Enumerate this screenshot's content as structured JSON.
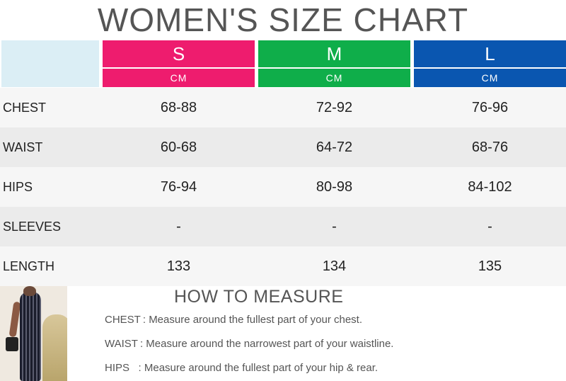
{
  "title": "WOMEN'S SIZE CHART",
  "sizes": [
    {
      "label": "S",
      "unit": "CM",
      "color": "#ee1c6e"
    },
    {
      "label": "M",
      "unit": "CM",
      "color": "#0fae4a"
    },
    {
      "label": "L",
      "unit": "CM",
      "color": "#0a56b0"
    }
  ],
  "rows": [
    {
      "label": "CHEST",
      "values": [
        "68-88",
        "72-92",
        "76-96"
      ]
    },
    {
      "label": "WAIST",
      "values": [
        "60-68",
        "64-72",
        "68-76"
      ]
    },
    {
      "label": "HIPS",
      "values": [
        "76-94",
        "80-98",
        "84-102"
      ]
    },
    {
      "label": "SLEEVES",
      "values": [
        "-",
        "-",
        "-"
      ]
    },
    {
      "label": "LENGTH",
      "values": [
        "133",
        "134",
        "135"
      ]
    }
  ],
  "how_to_measure": {
    "title": "HOW TO MEASURE",
    "items": [
      {
        "label": "CHEST :",
        "text": "Measure around the fullest part of your chest."
      },
      {
        "label": "WAIST :",
        "text": "Measure around the narrowest part of your waistline."
      },
      {
        "label": "HIPS   :",
        "text": "Measure around the fullest part of your hip & rear."
      }
    ]
  }
}
